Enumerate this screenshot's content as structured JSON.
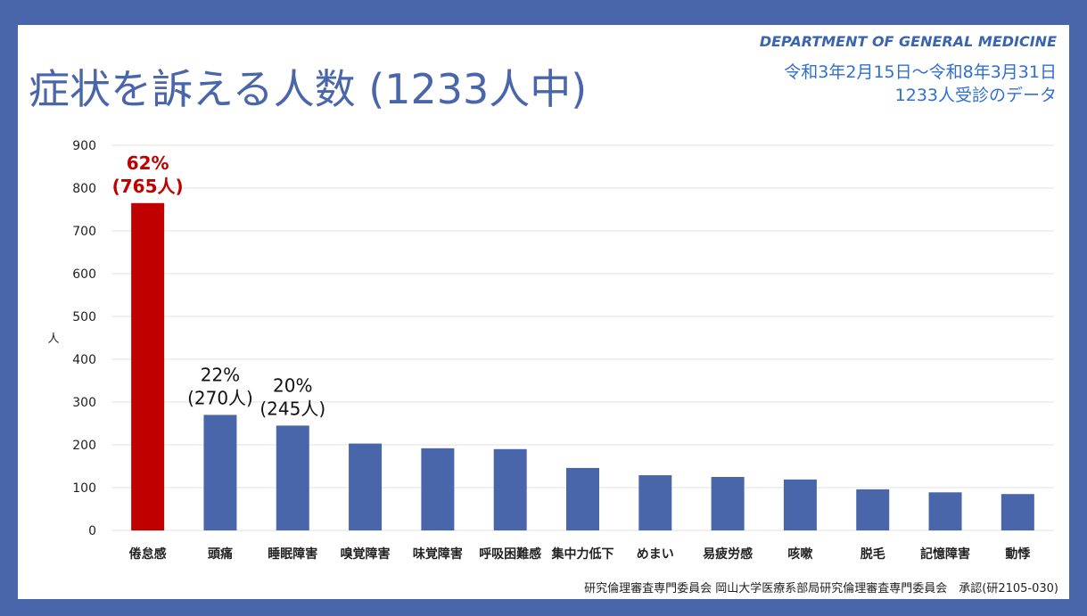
{
  "header": {
    "title": "症状を訴える人数 (1233人中)",
    "department": "DEPARTMENT OF GENERAL MEDICINE",
    "period": "令和3年2月15日～令和8年3月31日",
    "subjects": "1233人受診のデータ"
  },
  "footer": "研究倫理審査専門委員会 岡山大学医療系部局研究倫理審査専門委員会　承認(研2105-030)",
  "colors": {
    "background": "#4a66aa",
    "bar": "#4a66aa",
    "highlight": "#c00000"
  },
  "chart_data": {
    "type": "bar",
    "ylabel": "人",
    "ylim": [
      0,
      900
    ],
    "yticks": [
      0,
      100,
      200,
      300,
      400,
      500,
      600,
      700,
      800,
      900
    ],
    "grid": true,
    "categories": [
      "倦怠感",
      "頭痛",
      "睡眠障害",
      "嗅覚障害",
      "味覚障害",
      "呼吸困難感",
      "集中力低下",
      "めまい",
      "易疲労感",
      "咳嗽",
      "脱毛",
      "記憶障害",
      "動悸"
    ],
    "values": [
      765,
      270,
      245,
      203,
      192,
      190,
      146,
      129,
      125,
      119,
      96,
      89,
      85
    ],
    "highlight_index": 0,
    "annotations": [
      {
        "index": 0,
        "pct": "62%",
        "count": "(765人)"
      },
      {
        "index": 1,
        "pct": "22%",
        "count": "(270人)"
      },
      {
        "index": 2,
        "pct": "20%",
        "count": "(245人)"
      }
    ]
  }
}
